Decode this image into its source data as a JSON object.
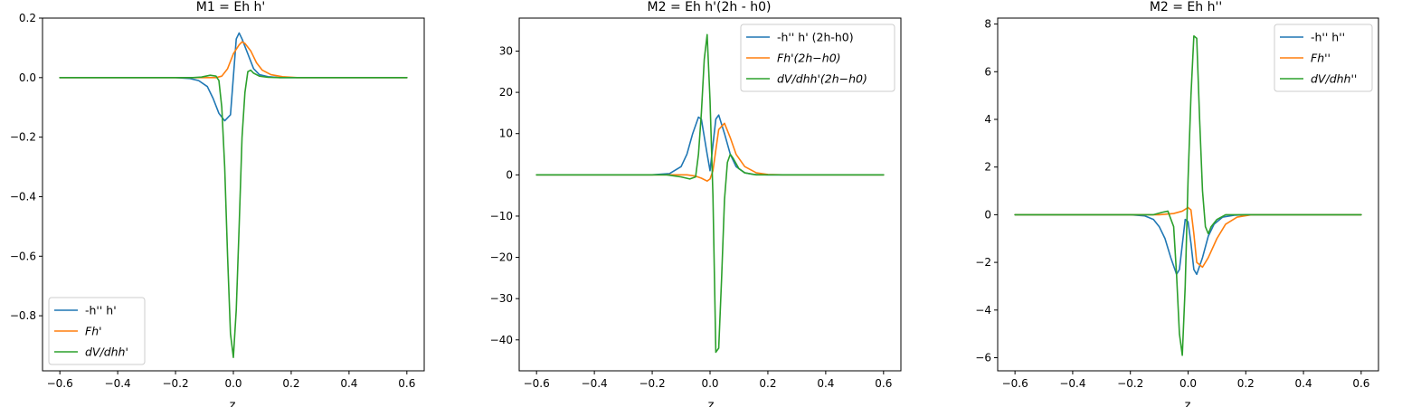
{
  "chart_data": [
    {
      "type": "line",
      "title": "M1 = Eh h'",
      "xlabel": "z",
      "ylabel": "",
      "xlim": [
        -0.66,
        0.66
      ],
      "ylim": [
        -0.985,
        0.2
      ],
      "xticks": [
        "−0.6",
        "−0.4",
        "−0.2",
        "0.0",
        "0.2",
        "0.4",
        "0.6"
      ],
      "xtick_values": [
        -0.6,
        -0.4,
        -0.2,
        0.0,
        0.2,
        0.4,
        0.6
      ],
      "yticks": [
        "−0.8",
        "−0.6",
        "−0.4",
        "−0.2",
        "0.0",
        "0.2"
      ],
      "ytick_values": [
        -0.8,
        -0.6,
        -0.4,
        -0.2,
        0.0,
        0.2
      ],
      "legend_position": "lower-left",
      "grid": false,
      "series": [
        {
          "name": "-h'' h'",
          "color": "#1f77b4",
          "x": [
            -0.6,
            -0.2,
            -0.15,
            -0.12,
            -0.09,
            -0.07,
            -0.05,
            -0.03,
            -0.01,
            0.01,
            0.02,
            0.03,
            0.05,
            0.07,
            0.09,
            0.12,
            0.16,
            0.22,
            0.6
          ],
          "y": [
            0.0,
            0.0,
            -0.003,
            -0.01,
            -0.03,
            -0.07,
            -0.12,
            -0.145,
            -0.125,
            0.13,
            0.15,
            0.13,
            0.08,
            0.03,
            0.01,
            0.003,
            0.0,
            0.0,
            0.0
          ]
        },
        {
          "name": "Fh'",
          "color": "#ff7f0e",
          "x": [
            -0.6,
            -0.1,
            -0.06,
            -0.04,
            -0.02,
            0.0,
            0.02,
            0.03,
            0.04,
            0.06,
            0.08,
            0.1,
            0.13,
            0.17,
            0.22,
            0.6
          ],
          "y": [
            0.0,
            0.0,
            0.0,
            0.005,
            0.03,
            0.08,
            0.11,
            0.12,
            0.115,
            0.09,
            0.05,
            0.025,
            0.01,
            0.003,
            0.0,
            0.0
          ]
        },
        {
          "name": "dV/dhh'",
          "color": "#2ca02c",
          "x": [
            -0.6,
            -0.14,
            -0.11,
            -0.08,
            -0.06,
            -0.05,
            -0.04,
            -0.03,
            -0.02,
            -0.01,
            0.0,
            0.01,
            0.02,
            0.03,
            0.04,
            0.05,
            0.06,
            0.07,
            0.09,
            0.12,
            0.16,
            0.2,
            0.6
          ],
          "y": [
            0.0,
            0.0,
            0.002,
            0.008,
            0.005,
            -0.01,
            -0.1,
            -0.3,
            -0.6,
            -0.86,
            -0.94,
            -0.78,
            -0.5,
            -0.2,
            -0.05,
            0.02,
            0.025,
            0.015,
            0.005,
            0.001,
            0.0,
            0.0,
            0.0
          ]
        }
      ]
    },
    {
      "type": "line",
      "title": "M2 = Eh h'(2h - h0)",
      "xlabel": "z",
      "ylabel": "",
      "xlim": [
        -0.66,
        0.66
      ],
      "ylim": [
        -47.5,
        38
      ],
      "xticks": [
        "−0.6",
        "−0.4",
        "−0.2",
        "0.0",
        "0.2",
        "0.4",
        "0.6"
      ],
      "xtick_values": [
        -0.6,
        -0.4,
        -0.2,
        0.0,
        0.2,
        0.4,
        0.6
      ],
      "yticks": [
        "−40",
        "−30",
        "−20",
        "−10",
        "0",
        "10",
        "20",
        "30"
      ],
      "ytick_values": [
        -40,
        -30,
        -20,
        -10,
        0,
        10,
        20,
        30
      ],
      "legend_position": "top-right",
      "grid": false,
      "series": [
        {
          "name": "-h'' h' (2h-h0)",
          "color": "#1f77b4",
          "x": [
            -0.6,
            -0.2,
            -0.14,
            -0.1,
            -0.08,
            -0.06,
            -0.04,
            -0.03,
            -0.01,
            0.0,
            0.02,
            0.03,
            0.05,
            0.07,
            0.09,
            0.12,
            0.15,
            0.2,
            0.6
          ],
          "y": [
            0.0,
            0.0,
            0.3,
            2.0,
            5.0,
            10.0,
            14.0,
            13.5,
            5.0,
            1.0,
            13.5,
            14.5,
            10.0,
            5.0,
            2.0,
            0.5,
            0.1,
            0.0,
            0.0
          ]
        },
        {
          "name": "Fh'(2h−h0)",
          "color": "#ff7f0e",
          "x": [
            -0.6,
            -0.15,
            -0.08,
            -0.05,
            -0.03,
            -0.01,
            0.0,
            0.01,
            0.02,
            0.03,
            0.05,
            0.07,
            0.09,
            0.12,
            0.16,
            0.2,
            0.25,
            0.6
          ],
          "y": [
            0.0,
            0.0,
            0.0,
            -0.3,
            -0.8,
            -1.5,
            -1.0,
            1.0,
            6.0,
            11.0,
            12.5,
            9.0,
            5.0,
            2.0,
            0.5,
            0.1,
            0.0,
            0.0
          ]
        },
        {
          "name": "dV/dhh'(2h−h0)",
          "color": "#2ca02c",
          "x": [
            -0.6,
            -0.15,
            -0.1,
            -0.07,
            -0.05,
            -0.04,
            -0.03,
            -0.02,
            -0.01,
            0.0,
            0.01,
            0.02,
            0.03,
            0.04,
            0.05,
            0.06,
            0.07,
            0.08,
            0.1,
            0.12,
            0.16,
            0.2,
            0.6
          ],
          "y": [
            0.0,
            0.0,
            -0.5,
            -1.0,
            -0.5,
            5.0,
            15.0,
            28.0,
            34.0,
            18.0,
            -5.0,
            -43.0,
            -42.0,
            -25.0,
            -6.0,
            3.0,
            5.0,
            4.0,
            1.5,
            0.5,
            0.0,
            0.0,
            0.0
          ]
        }
      ]
    },
    {
      "type": "line",
      "title": "M2 = Eh h''",
      "xlabel": "z",
      "ylabel": "",
      "xlim": [
        -0.66,
        0.66
      ],
      "ylim": [
        -6.55,
        8.25
      ],
      "xticks": [
        "−0.6",
        "−0.4",
        "−0.2",
        "0.0",
        "0.2",
        "0.4",
        "0.6"
      ],
      "xtick_values": [
        -0.6,
        -0.4,
        -0.2,
        0.0,
        0.2,
        0.4,
        0.6
      ],
      "yticks": [
        "−6",
        "−4",
        "−2",
        "0",
        "2",
        "4",
        "6",
        "8"
      ],
      "ytick_values": [
        -6,
        -4,
        -2,
        0,
        2,
        4,
        6,
        8
      ],
      "legend_position": "top-right",
      "grid": false,
      "series": [
        {
          "name": "-h'' h''",
          "color": "#1f77b4",
          "x": [
            -0.6,
            -0.2,
            -0.15,
            -0.12,
            -0.1,
            -0.08,
            -0.06,
            -0.04,
            -0.03,
            -0.01,
            0.0,
            0.01,
            0.02,
            0.03,
            0.05,
            0.07,
            0.09,
            0.12,
            0.16,
            0.2,
            0.6
          ],
          "y": [
            0.0,
            0.0,
            -0.05,
            -0.2,
            -0.5,
            -1.0,
            -1.8,
            -2.5,
            -2.3,
            -0.2,
            -0.3,
            -1.2,
            -2.3,
            -2.5,
            -1.8,
            -0.9,
            -0.4,
            -0.1,
            -0.02,
            0.0,
            0.0
          ]
        },
        {
          "name": "Fh''",
          "color": "#ff7f0e",
          "x": [
            -0.6,
            -0.1,
            -0.05,
            -0.02,
            0.0,
            0.01,
            0.02,
            0.03,
            0.05,
            0.07,
            0.1,
            0.13,
            0.17,
            0.22,
            0.6
          ],
          "y": [
            0.0,
            0.0,
            0.05,
            0.15,
            0.3,
            0.2,
            -0.8,
            -2.0,
            -2.2,
            -1.8,
            -1.0,
            -0.4,
            -0.1,
            0.0,
            0.0
          ]
        },
        {
          "name": "dV/dhh''",
          "color": "#2ca02c",
          "x": [
            -0.6,
            -0.12,
            -0.09,
            -0.07,
            -0.05,
            -0.04,
            -0.03,
            -0.02,
            -0.01,
            0.0,
            0.01,
            0.02,
            0.03,
            0.04,
            0.05,
            0.06,
            0.07,
            0.08,
            0.1,
            0.13,
            0.18,
            0.6
          ],
          "y": [
            0.0,
            0.0,
            0.1,
            0.15,
            -0.5,
            -2.5,
            -5.0,
            -5.9,
            -3.0,
            1.5,
            5.0,
            7.5,
            7.4,
            4.0,
            1.0,
            -0.5,
            -0.8,
            -0.5,
            -0.2,
            0.0,
            0.0,
            0.0
          ]
        }
      ]
    }
  ]
}
